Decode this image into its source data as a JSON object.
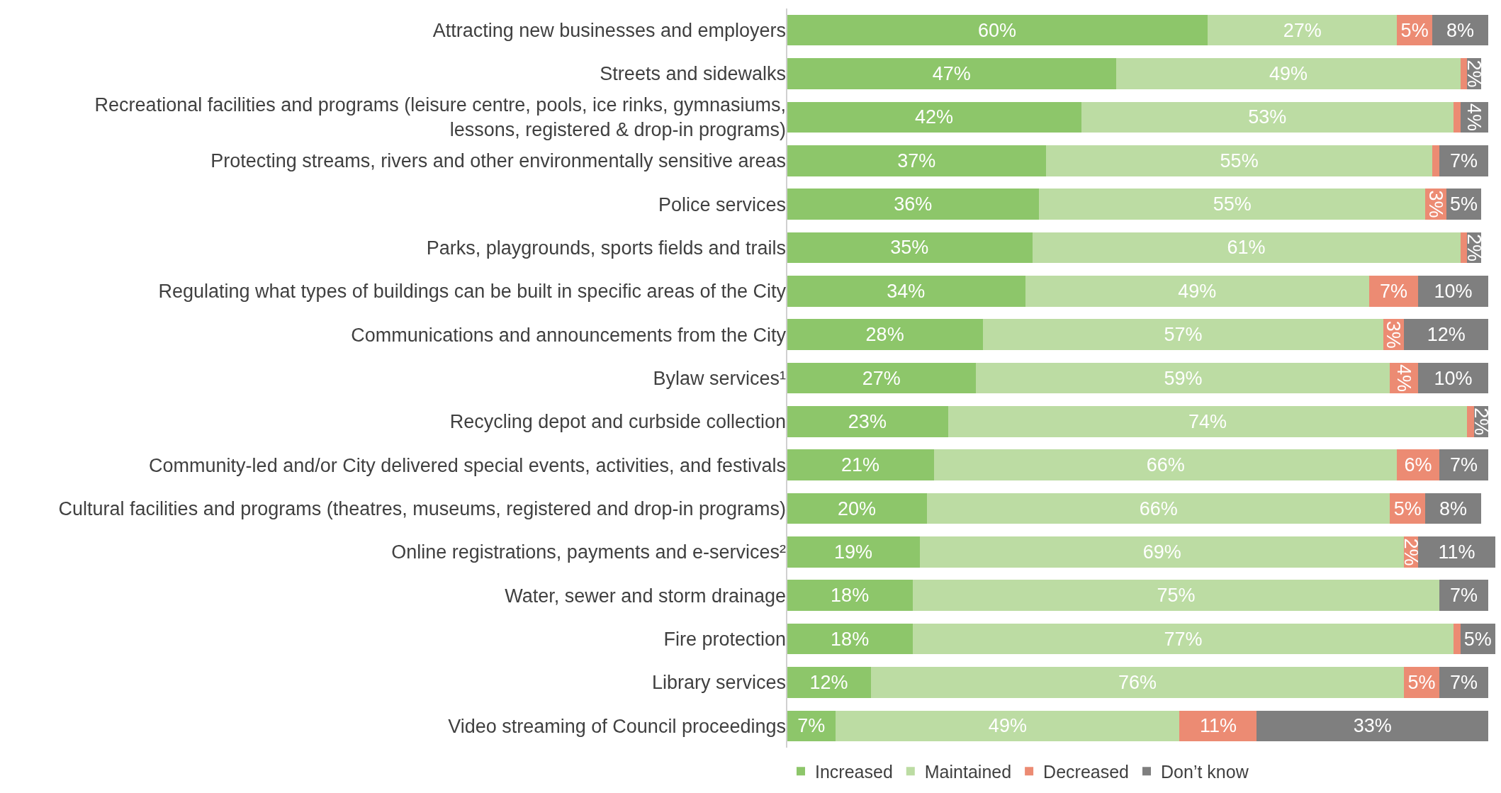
{
  "chart_data": {
    "type": "bar",
    "orientation": "horizontal",
    "stacked": true,
    "legend": "bottom",
    "tick_labels": "y",
    "xlim": [
      0,
      101
    ],
    "categories": [
      "Attracting new businesses and employers",
      "Streets and sidewalks",
      "Recreational facilities and programs (leisure centre, pools, ice rinks, gymnasiums, lessons, registered & drop-in programs)",
      "Protecting streams, rivers and other environmentally sensitive areas",
      "Police services",
      "Parks, playgrounds, sports fields and trails",
      "Regulating what types of buildings can be built in specific areas of the City",
      "Communications and announcements from the City",
      "Bylaw services¹",
      "Recycling depot and curbside collection",
      "Community-led and/or City delivered special events, activities, and festivals",
      "Cultural facilities and programs (theatres, museums, registered and drop-in programs)",
      "Online registrations, payments and e-services²",
      "Water, sewer and storm drainage",
      "Fire protection",
      "Library services",
      "Video streaming of Council proceedings"
    ],
    "series": [
      {
        "name": "Increased",
        "color": "#8dc66a",
        "values": [
          60,
          47,
          42,
          37,
          36,
          35,
          34,
          28,
          27,
          23,
          21,
          20,
          19,
          18,
          18,
          12,
          7
        ],
        "value_labels": [
          "60%",
          "47%",
          "42%",
          "37%",
          "36%",
          "35%",
          "34%",
          "28%",
          "27%",
          "23%",
          "21%",
          "20%",
          "19%",
          "18%",
          "18%",
          "12%",
          "7%"
        ]
      },
      {
        "name": "Maintained",
        "color": "#bcdca3",
        "values": [
          27,
          49,
          53,
          55,
          55,
          61,
          49,
          57,
          59,
          74,
          66,
          66,
          69,
          75,
          77,
          76,
          49
        ],
        "value_labels": [
          "27%",
          "49%",
          "53%",
          "55%",
          "55%",
          "61%",
          "49%",
          "57%",
          "59%",
          "74%",
          "66%",
          "66%",
          "69%",
          "75%",
          "77%",
          "76%",
          "49%"
        ]
      },
      {
        "name": "Decreased",
        "color": "#ec8b73",
        "values": [
          5,
          1,
          1,
          1,
          3,
          1,
          7,
          3,
          4,
          1,
          6,
          5,
          2,
          0,
          1,
          5,
          11
        ],
        "value_labels": [
          "5%",
          null,
          null,
          null,
          "3%",
          null,
          "7%",
          "3%",
          "4%",
          null,
          "6%",
          "5%",
          "2%",
          null,
          null,
          "5%",
          "11%"
        ]
      },
      {
        "name": "Don’t know",
        "color": "#7f7f7f",
        "values": [
          8,
          2,
          4,
          7,
          5,
          2,
          10,
          12,
          10,
          2,
          7,
          8,
          11,
          7,
          5,
          7,
          33
        ],
        "value_labels": [
          "8%",
          "2%",
          "4%",
          "7%",
          "5%",
          "2%",
          "10%",
          "12%",
          "10%",
          "2%",
          "7%",
          "8%",
          "11%",
          "7%",
          "5%",
          "7%",
          "33%"
        ]
      }
    ]
  }
}
